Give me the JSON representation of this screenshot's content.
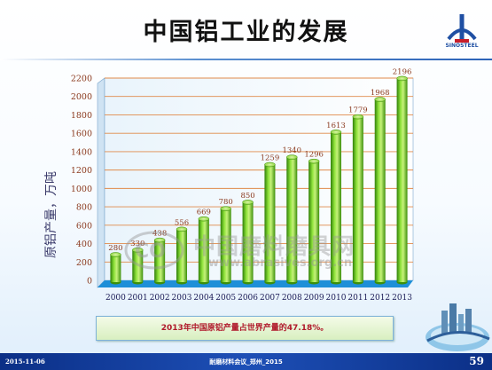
{
  "slide": {
    "title": "中国铝工业的发展",
    "caption": "2013年中国原铝产量占世界产量的47.18%。"
  },
  "logo": {
    "text": "SINOSTEEL"
  },
  "watermark": {
    "text": "中国磨料磨具网",
    "url": "www.abrasives.org.cn"
  },
  "footer": {
    "date": "2015-11-06",
    "center": "耐磨材料会议_郑州_2015",
    "page": "59"
  },
  "colors": {
    "bar": "#6fcf1a",
    "bar_dark": "#3c8f0a",
    "gridline": "#e08a4a",
    "plot_floor": "#1e8fd8",
    "label": "#8b3a1e",
    "footer": "#0b2f86"
  },
  "chart_data": {
    "type": "bar",
    "title": "",
    "ylabel": "原铝产量，万吨",
    "xlabel": "",
    "ylim": [
      0,
      2200
    ],
    "yticks": [
      0,
      200,
      400,
      600,
      800,
      1000,
      1200,
      1400,
      1600,
      1800,
      2000,
      2200
    ],
    "grid": true,
    "categories": [
      "2000",
      "2001",
      "2002",
      "2003",
      "2004",
      "2005",
      "2006",
      "2007",
      "2008",
      "2009",
      "2010",
      "2011",
      "2012",
      "2013"
    ],
    "values": [
      280,
      330,
      438,
      556,
      669,
      780,
      850,
      1259,
      1340,
      1296,
      1613,
      1779,
      1968,
      2196
    ],
    "data_labels": [
      "280",
      "330",
      "438",
      "556",
      "669",
      "780",
      "850",
      "1259",
      "1340",
      "1296",
      "1613",
      "1779",
      "1968",
      "2196"
    ]
  }
}
